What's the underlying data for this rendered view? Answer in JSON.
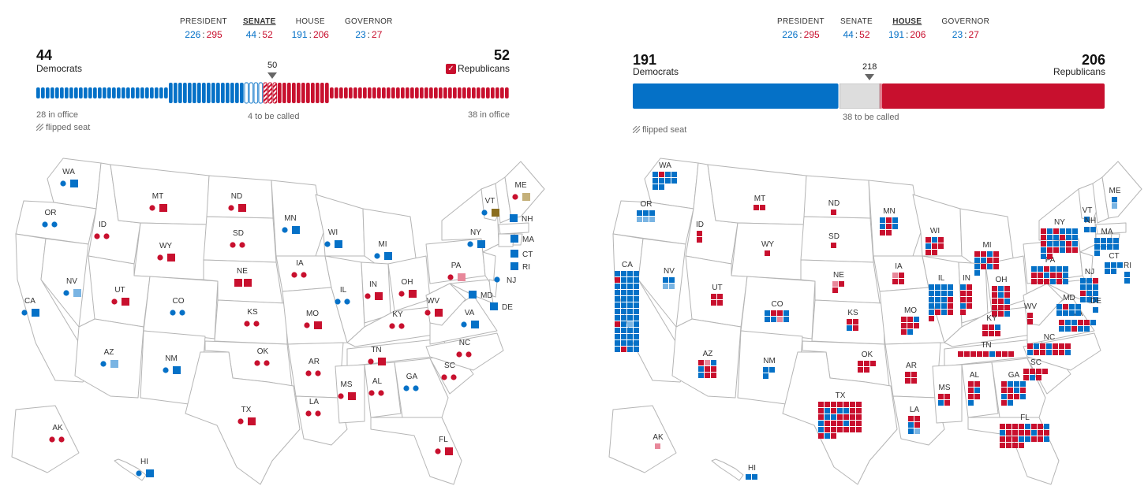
{
  "nav": {
    "tabs": [
      {
        "id": "president",
        "label": "PRESIDENT",
        "dem": "226",
        "rep": "295"
      },
      {
        "id": "senate",
        "label": "SENATE",
        "dem": "44",
        "rep": "52"
      },
      {
        "id": "house",
        "label": "HOUSE",
        "dem": "191",
        "rep": "206"
      },
      {
        "id": "governor",
        "label": "GOVERNOR",
        "dem": "23",
        "rep": "27"
      }
    ],
    "separator": ":"
  },
  "colors": {
    "dem": "#0571c7",
    "dem_light": "#79b4e3",
    "rep": "#c8102e",
    "rep_light": "#e8889a",
    "uncalled": "#dddddd",
    "independent": "#8a6d1f",
    "independent_light": "#c4b07a",
    "state_fill": "#ffffff",
    "state_stroke": "#b5b5b5"
  },
  "senate": {
    "active_tab": "senate",
    "dem_total": "44",
    "dem_label": "Democrats",
    "rep_total": "52",
    "rep_label": "Republicans",
    "majority": "50",
    "dem_note": "28 in office",
    "rep_note": "38 in office",
    "uncalled_note": "4 to be called",
    "flipped_note": "flipped seat",
    "seats": {
      "dem_in_office": 28,
      "dem_won": 16,
      "uncalled": 4,
      "rep_flipped": 3,
      "rep_won": 11,
      "rep_in_office": 38
    },
    "states": [
      {
        "abbr": "WA",
        "markers": [
          "dd",
          "ds"
        ]
      },
      {
        "abbr": "OR",
        "markers": [
          "dd",
          "dd"
        ]
      },
      {
        "abbr": "CA",
        "markers": [
          "dd",
          "ds"
        ]
      },
      {
        "abbr": "NV",
        "markers": [
          "dd",
          "dls"
        ]
      },
      {
        "abbr": "AZ",
        "markers": [
          "dd",
          "dls"
        ]
      },
      {
        "abbr": "ID",
        "markers": [
          "rd",
          "rd"
        ]
      },
      {
        "abbr": "MT",
        "markers": [
          "rd",
          "rs"
        ]
      },
      {
        "abbr": "WY",
        "markers": [
          "rd",
          "rs"
        ]
      },
      {
        "abbr": "UT",
        "markers": [
          "rd",
          "rs"
        ]
      },
      {
        "abbr": "CO",
        "markers": [
          "dd",
          "dd"
        ]
      },
      {
        "abbr": "NM",
        "markers": [
          "dd",
          "ds"
        ]
      },
      {
        "abbr": "AK",
        "markers": [
          "rd",
          "rd"
        ]
      },
      {
        "abbr": "HI",
        "markers": [
          "dd",
          "ds"
        ]
      },
      {
        "abbr": "ND",
        "markers": [
          "rd",
          "rs"
        ]
      },
      {
        "abbr": "SD",
        "markers": [
          "rd",
          "rd"
        ]
      },
      {
        "abbr": "NE",
        "markers": [
          "rs",
          "rs"
        ]
      },
      {
        "abbr": "KS",
        "markers": [
          "rd",
          "rd"
        ]
      },
      {
        "abbr": "OK",
        "markers": [
          "rd",
          "rd"
        ]
      },
      {
        "abbr": "TX",
        "markers": [
          "rd",
          "rs"
        ]
      },
      {
        "abbr": "MN",
        "markers": [
          "dd",
          "ds"
        ]
      },
      {
        "abbr": "IA",
        "markers": [
          "rd",
          "rd"
        ]
      },
      {
        "abbr": "MO",
        "markers": [
          "rd",
          "rs"
        ]
      },
      {
        "abbr": "AR",
        "markers": [
          "rd",
          "rd"
        ]
      },
      {
        "abbr": "LA",
        "markers": [
          "rd",
          "rd"
        ]
      },
      {
        "abbr": "WI",
        "markers": [
          "dd",
          "ds"
        ]
      },
      {
        "abbr": "IL",
        "markers": [
          "dd",
          "dd"
        ]
      },
      {
        "abbr": "MI",
        "markers": [
          "dd",
          "ds"
        ]
      },
      {
        "abbr": "IN",
        "markers": [
          "rd",
          "rs"
        ]
      },
      {
        "abbr": "OH",
        "markers": [
          "rd",
          "rs"
        ]
      },
      {
        "abbr": "KY",
        "markers": [
          "rd",
          "rd"
        ]
      },
      {
        "abbr": "TN",
        "markers": [
          "rd",
          "rs"
        ]
      },
      {
        "abbr": "MS",
        "markers": [
          "rd",
          "rs"
        ]
      },
      {
        "abbr": "AL",
        "markers": [
          "rd",
          "rd"
        ]
      },
      {
        "abbr": "GA",
        "markers": [
          "dd",
          "dd"
        ]
      },
      {
        "abbr": "FL",
        "markers": [
          "rd",
          "rs"
        ]
      },
      {
        "abbr": "SC",
        "markers": [
          "rd",
          "rd"
        ]
      },
      {
        "abbr": "NC",
        "markers": [
          "rd",
          "rd"
        ]
      },
      {
        "abbr": "VA",
        "markers": [
          "dd",
          "ds"
        ]
      },
      {
        "abbr": "WV",
        "markers": [
          "rd",
          "rs"
        ]
      },
      {
        "abbr": "PA",
        "markers": [
          "rd",
          "rls"
        ]
      },
      {
        "abbr": "NY",
        "markers": [
          "dd",
          "ds"
        ]
      },
      {
        "abbr": "VT",
        "markers": [
          "dd",
          "is"
        ]
      },
      {
        "abbr": "ME",
        "markers": [
          "rd",
          "ils"
        ]
      },
      {
        "abbr": "NH",
        "markers": [
          "ds"
        ]
      },
      {
        "abbr": "MA",
        "markers": [
          "ds"
        ]
      },
      {
        "abbr": "CT",
        "markers": [
          "ds"
        ]
      },
      {
        "abbr": "RI",
        "markers": [
          "ds"
        ]
      },
      {
        "abbr": "NJ",
        "markers": [
          "dd"
        ]
      },
      {
        "abbr": "DE",
        "markers": [
          "ds"
        ]
      },
      {
        "abbr": "MD",
        "markers": [
          "ds"
        ]
      }
    ]
  },
  "house": {
    "active_tab": "house",
    "dem_total": "191",
    "dem_label": "Democrats",
    "rep_total": "206",
    "rep_label": "Republicans",
    "majority": "218",
    "uncalled_note": "38 to be called",
    "flipped_note": "flipped seat",
    "seats": {
      "dem": 191,
      "uncalled": 38,
      "rep": 206
    },
    "states": [
      {
        "abbr": "WA",
        "cells": [
          "d",
          "r",
          "d",
          "d",
          "d",
          "d",
          "d",
          "d",
          "d",
          "d"
        ]
      },
      {
        "abbr": "OR",
        "cells": [
          "d",
          "d",
          "d",
          "dl",
          "dl",
          "dl"
        ]
      },
      {
        "abbr": "CA",
        "cells": [
          "d",
          "d",
          "d",
          "d",
          "r",
          "d",
          "d",
          "d",
          "d",
          "d",
          "d",
          "d",
          "d",
          "d",
          "d",
          "d",
          "d",
          "d",
          "d",
          "d",
          "d",
          "d",
          "d",
          "d",
          "d",
          "d",
          "d",
          "d",
          "d",
          "d",
          "d",
          "d",
          "r",
          "d",
          "dl",
          "d",
          "d",
          "d",
          "d",
          "d",
          "d",
          "d",
          "d",
          "d",
          "d",
          "d",
          "d",
          "d",
          "d",
          "r",
          "d",
          "d"
        ]
      },
      {
        "abbr": "NV",
        "cells": [
          "d",
          "d",
          "dl",
          "dl"
        ]
      },
      {
        "abbr": "AZ",
        "cells": [
          "r",
          "rl",
          "d",
          "d",
          "r",
          "r",
          "d",
          "r",
          "r"
        ]
      },
      {
        "abbr": "ID",
        "cells": [
          "r",
          "r"
        ]
      },
      {
        "abbr": "MT",
        "cells": [
          "r",
          "r"
        ]
      },
      {
        "abbr": "WY",
        "cells": [
          "r"
        ]
      },
      {
        "abbr": "UT",
        "cells": [
          "r",
          "r",
          "r",
          "r"
        ]
      },
      {
        "abbr": "CO",
        "cells": [
          "d",
          "r",
          "r",
          "d",
          "d",
          "d",
          "rl",
          "d"
        ]
      },
      {
        "abbr": "NM",
        "cells": [
          "d",
          "d",
          "d"
        ]
      },
      {
        "abbr": "AK",
        "cells": [
          "rl"
        ]
      },
      {
        "abbr": "HI",
        "cells": [
          "d",
          "d"
        ]
      },
      {
        "abbr": "ND",
        "cells": [
          "r"
        ]
      },
      {
        "abbr": "SD",
        "cells": [
          "r"
        ]
      },
      {
        "abbr": "NE",
        "cells": [
          "rl",
          "r",
          "r"
        ]
      },
      {
        "abbr": "KS",
        "cells": [
          "r",
          "r",
          "d",
          "r"
        ]
      },
      {
        "abbr": "OK",
        "cells": [
          "r",
          "r",
          "r",
          "r",
          "r"
        ]
      },
      {
        "abbr": "TX",
        "cells": [
          "r",
          "r",
          "r",
          "r",
          "r",
          "r",
          "r",
          "r",
          "d",
          "r",
          "d",
          "d",
          "r",
          "r",
          "r",
          "d",
          "d",
          "r",
          "r",
          "r",
          "r",
          "d",
          "r",
          "r",
          "r",
          "d",
          "r",
          "r",
          "d",
          "r",
          "r",
          "r",
          "r",
          "r",
          "r",
          "r",
          "d",
          "r"
        ]
      },
      {
        "abbr": "MN",
        "cells": [
          "d",
          "r",
          "d",
          "d",
          "r",
          "d",
          "r",
          "r"
        ]
      },
      {
        "abbr": "IA",
        "cells": [
          "rl",
          "r",
          "r",
          "r"
        ]
      },
      {
        "abbr": "MO",
        "cells": [
          "r",
          "r",
          "d",
          "r",
          "r",
          "r",
          "r",
          "d"
        ]
      },
      {
        "abbr": "AR",
        "cells": [
          "r",
          "r",
          "r",
          "r"
        ]
      },
      {
        "abbr": "LA",
        "cells": [
          "r",
          "r",
          "d",
          "r",
          "d",
          "dl"
        ]
      },
      {
        "abbr": "WI",
        "cells": [
          "r",
          "d",
          "r",
          "d",
          "r",
          "r",
          "r",
          "r"
        ]
      },
      {
        "abbr": "IL",
        "cells": [
          "d",
          "d",
          "d",
          "d",
          "d",
          "d",
          "d",
          "d",
          "d",
          "d",
          "d",
          "r",
          "d",
          "d",
          "d",
          "r",
          "d",
          "r",
          "d",
          "r",
          "r"
        ]
      },
      {
        "abbr": "MI",
        "cells": [
          "r",
          "r",
          "d",
          "r",
          "d",
          "d",
          "r",
          "r",
          "d",
          "r",
          "d",
          "r",
          "d"
        ]
      },
      {
        "abbr": "IN",
        "cells": [
          "d",
          "r",
          "r",
          "r",
          "r",
          "r",
          "d",
          "r",
          "r"
        ]
      },
      {
        "abbr": "OH",
        "cells": [
          "r",
          "d",
          "r",
          "r",
          "d",
          "r",
          "r",
          "r",
          "d",
          "r",
          "r",
          "r",
          "r",
          "r",
          "d"
        ]
      },
      {
        "abbr": "KY",
        "cells": [
          "r",
          "r",
          "d",
          "r",
          "r",
          "r"
        ]
      },
      {
        "abbr": "TN",
        "cells": [
          "r",
          "r",
          "r",
          "r",
          "r",
          "d",
          "r",
          "r",
          "r"
        ]
      },
      {
        "abbr": "MS",
        "cells": [
          "r",
          "r",
          "d",
          "r"
        ]
      },
      {
        "abbr": "AL",
        "cells": [
          "r",
          "r",
          "r",
          "d",
          "r",
          "r",
          "d"
        ]
      },
      {
        "abbr": "GA",
        "cells": [
          "r",
          "d",
          "d",
          "d",
          "r",
          "r",
          "d",
          "r",
          "d",
          "r",
          "r",
          "d",
          "r",
          "d"
        ]
      },
      {
        "abbr": "FL",
        "cells": [
          "r",
          "r",
          "r",
          "r",
          "d",
          "r",
          "r",
          "d",
          "d",
          "r",
          "r",
          "r",
          "r",
          "d",
          "r",
          "r",
          "r",
          "r",
          "r",
          "d",
          "d",
          "r",
          "r",
          "d",
          "r",
          "r",
          "r",
          "r"
        ]
      },
      {
        "abbr": "SC",
        "cells": [
          "r",
          "r",
          "r",
          "r",
          "r",
          "d",
          "r"
        ]
      },
      {
        "abbr": "NC",
        "cells": [
          "r",
          "d",
          "r",
          "d",
          "r",
          "r",
          "r",
          "d",
          "r",
          "r",
          "d",
          "r",
          "r",
          "d"
        ]
      },
      {
        "abbr": "VA",
        "cells": [
          "r",
          "d",
          "d",
          "r",
          "r",
          "d",
          "d",
          "d",
          "r",
          "d",
          "d"
        ]
      },
      {
        "abbr": "WV",
        "cells": [
          "r",
          "r"
        ]
      },
      {
        "abbr": "PA",
        "cells": [
          "d",
          "d",
          "r",
          "d",
          "d",
          "d",
          "r",
          "r",
          "d",
          "r",
          "r",
          "d",
          "r",
          "r",
          "r",
          "d",
          "r",
          "d"
        ]
      },
      {
        "abbr": "NY",
        "cells": [
          "r",
          "d",
          "r",
          "d",
          "d",
          "d",
          "r",
          "d",
          "d",
          "r",
          "d",
          "d",
          "r",
          "d",
          "d",
          "d",
          "r",
          "d",
          "d",
          "r",
          "r",
          "d",
          "r",
          "r",
          "d",
          "r"
        ]
      },
      {
        "abbr": "VT",
        "cells": [
          "d"
        ]
      },
      {
        "abbr": "NH",
        "cells": [
          "d",
          "d"
        ]
      },
      {
        "abbr": "ME",
        "cells": [
          "d",
          "dl"
        ]
      },
      {
        "abbr": "MA",
        "cells": [
          "d",
          "d",
          "d",
          "d",
          "d",
          "d",
          "d",
          "d",
          "d"
        ]
      },
      {
        "abbr": "CT",
        "cells": [
          "d",
          "d",
          "d",
          "d",
          "d"
        ]
      },
      {
        "abbr": "RI",
        "cells": [
          "d",
          "d"
        ]
      },
      {
        "abbr": "NJ",
        "cells": [
          "d",
          "d",
          "r",
          "d",
          "d",
          "d",
          "r",
          "d",
          "d",
          "d",
          "d",
          "d"
        ]
      },
      {
        "abbr": "MD",
        "cells": [
          "d",
          "r",
          "d",
          "d",
          "d",
          "d",
          "d",
          "d"
        ]
      },
      {
        "abbr": "DE",
        "cells": [
          "d"
        ]
      }
    ]
  }
}
